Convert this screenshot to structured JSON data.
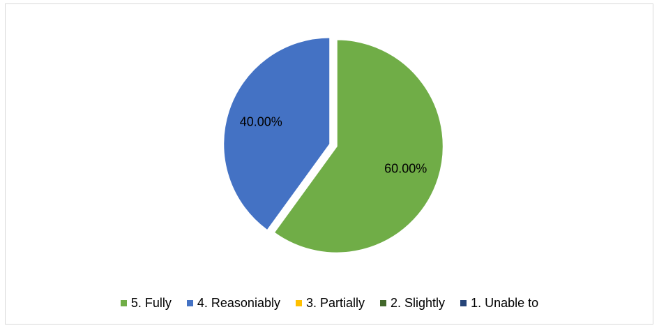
{
  "chart_data": {
    "type": "pie",
    "title": "",
    "series": [
      {
        "values": [
          60.0,
          40.0,
          0,
          0,
          0
        ]
      }
    ],
    "categories": [
      "5. Fully",
      "4. Reasoniably",
      "3. Partially",
      "2. Slightly",
      "1. Unable to"
    ],
    "data_labels": [
      "60.00%",
      "40.00%",
      "",
      "",
      ""
    ],
    "colors": [
      "#70ad47",
      "#4472c4",
      "#ffc000",
      "#43682b",
      "#264478"
    ],
    "legend_position": "bottom",
    "exploded_slices": true
  }
}
